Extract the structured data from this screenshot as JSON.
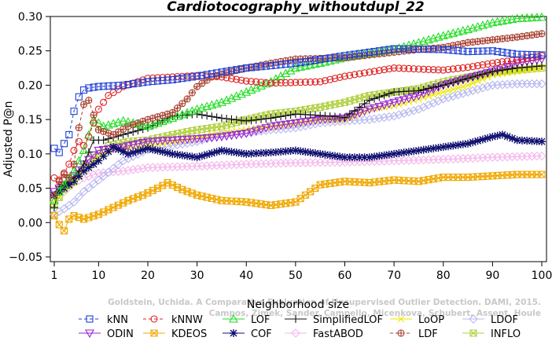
{
  "chart_data": {
    "type": "line",
    "title": "Cardiotocography_withoutdupl_22",
    "xlabel": "Neighborhood size",
    "ylabel": "Adjusted P@n",
    "xlim": [
      1,
      100
    ],
    "ylim": [
      -0.05,
      0.3
    ],
    "x_ticks": [
      1,
      10,
      20,
      30,
      40,
      50,
      60,
      70,
      80,
      90,
      100
    ],
    "y_ticks": [
      -0.05,
      0.0,
      0.05,
      0.1,
      0.15,
      0.2,
      0.25,
      0.3
    ],
    "y_tick_labels": [
      "−0.05",
      "0.00",
      "0.05",
      "0.10",
      "0.15",
      "0.20",
      "0.25",
      "0.30"
    ],
    "grid": false,
    "legend_position": "bottom",
    "watermark_lines": [
      "Goldstein, Uchida. A Comparative Evaluation of Unsupervised Outlier Detection. DAMI, 2015.",
      "Campos, Zimek, Sander, Campello, Micenkova, Schubert, Assent, Houle"
    ],
    "series": [
      {
        "name": "kNN",
        "color": "#1f3fd6",
        "marker": "square",
        "dashed": true,
        "knots": [
          [
            1,
            0.108
          ],
          [
            2,
            0.102
          ],
          [
            3,
            0.115
          ],
          [
            4,
            0.128
          ],
          [
            5,
            0.162
          ],
          [
            6,
            0.183
          ],
          [
            7,
            0.193
          ],
          [
            8,
            0.196
          ],
          [
            10,
            0.198
          ],
          [
            15,
            0.2
          ],
          [
            20,
            0.205
          ],
          [
            25,
            0.208
          ],
          [
            30,
            0.213
          ],
          [
            40,
            0.225
          ],
          [
            50,
            0.232
          ],
          [
            60,
            0.243
          ],
          [
            70,
            0.253
          ],
          [
            80,
            0.252
          ],
          [
            85,
            0.249
          ],
          [
            90,
            0.25
          ],
          [
            95,
            0.245
          ],
          [
            100,
            0.244
          ]
        ]
      },
      {
        "name": "kNNW",
        "color": "#e02020",
        "marker": "circle",
        "dashed": true,
        "knots": [
          [
            1,
            0.065
          ],
          [
            2,
            0.062
          ],
          [
            3,
            0.072
          ],
          [
            4,
            0.085
          ],
          [
            5,
            0.105
          ],
          [
            6,
            0.118
          ],
          [
            7,
            0.112
          ],
          [
            8,
            0.125
          ],
          [
            10,
            0.165
          ],
          [
            12,
            0.185
          ],
          [
            15,
            0.198
          ],
          [
            20,
            0.21
          ],
          [
            25,
            0.212
          ],
          [
            30,
            0.214
          ],
          [
            35,
            0.212
          ],
          [
            40,
            0.206
          ],
          [
            45,
            0.203
          ],
          [
            50,
            0.204
          ],
          [
            55,
            0.205
          ],
          [
            60,
            0.213
          ],
          [
            70,
            0.225
          ],
          [
            80,
            0.222
          ],
          [
            85,
            0.226
          ],
          [
            90,
            0.232
          ],
          [
            95,
            0.237
          ],
          [
            100,
            0.243
          ]
        ]
      },
      {
        "name": "LOF",
        "color": "#22dd22",
        "marker": "triangle",
        "dashed": false,
        "knots": [
          [
            1,
            0.032
          ],
          [
            2,
            0.045
          ],
          [
            3,
            0.055
          ],
          [
            5,
            0.075
          ],
          [
            7,
            0.105
          ],
          [
            9,
            0.15
          ],
          [
            11,
            0.14
          ],
          [
            15,
            0.148
          ],
          [
            20,
            0.14
          ],
          [
            25,
            0.152
          ],
          [
            30,
            0.165
          ],
          [
            35,
            0.175
          ],
          [
            40,
            0.19
          ],
          [
            45,
            0.205
          ],
          [
            50,
            0.225
          ],
          [
            55,
            0.232
          ],
          [
            60,
            0.24
          ],
          [
            70,
            0.252
          ],
          [
            80,
            0.272
          ],
          [
            85,
            0.281
          ],
          [
            90,
            0.291
          ],
          [
            95,
            0.297
          ],
          [
            100,
            0.299
          ]
        ]
      },
      {
        "name": "SimplifiedLOF",
        "color": "#111111",
        "marker": "plus",
        "dashed": false,
        "knots": [
          [
            1,
            0.022
          ],
          [
            2,
            0.052
          ],
          [
            3,
            0.055
          ],
          [
            5,
            0.065
          ],
          [
            7,
            0.085
          ],
          [
            9,
            0.12
          ],
          [
            11,
            0.12
          ],
          [
            15,
            0.128
          ],
          [
            20,
            0.138
          ],
          [
            25,
            0.155
          ],
          [
            30,
            0.158
          ],
          [
            35,
            0.152
          ],
          [
            40,
            0.148
          ],
          [
            45,
            0.152
          ],
          [
            50,
            0.158
          ],
          [
            55,
            0.156
          ],
          [
            60,
            0.153
          ],
          [
            65,
            0.178
          ],
          [
            70,
            0.19
          ],
          [
            75,
            0.192
          ],
          [
            80,
            0.2
          ],
          [
            85,
            0.21
          ],
          [
            90,
            0.22
          ],
          [
            95,
            0.225
          ],
          [
            100,
            0.228
          ]
        ]
      },
      {
        "name": "LoOP",
        "color": "#e8e800",
        "marker": "x",
        "dashed": false,
        "knots": [
          [
            1,
            0.03
          ],
          [
            3,
            0.048
          ],
          [
            5,
            0.058
          ],
          [
            7,
            0.075
          ],
          [
            9,
            0.09
          ],
          [
            12,
            0.105
          ],
          [
            15,
            0.108
          ],
          [
            20,
            0.112
          ],
          [
            25,
            0.118
          ],
          [
            30,
            0.124
          ],
          [
            35,
            0.13
          ],
          [
            40,
            0.135
          ],
          [
            45,
            0.14
          ],
          [
            50,
            0.145
          ],
          [
            55,
            0.15
          ],
          [
            60,
            0.15
          ],
          [
            65,
            0.165
          ],
          [
            70,
            0.17
          ],
          [
            75,
            0.18
          ],
          [
            80,
            0.19
          ],
          [
            85,
            0.2
          ],
          [
            90,
            0.215
          ],
          [
            95,
            0.22
          ],
          [
            100,
            0.225
          ]
        ]
      },
      {
        "name": "LDOF",
        "color": "#b8b8f0",
        "marker": "diamond",
        "dashed": false,
        "knots": [
          [
            1,
            0.012
          ],
          [
            3,
            0.02
          ],
          [
            5,
            0.03
          ],
          [
            7,
            0.045
          ],
          [
            10,
            0.062
          ],
          [
            15,
            0.09
          ],
          [
            20,
            0.106
          ],
          [
            25,
            0.112
          ],
          [
            30,
            0.118
          ],
          [
            35,
            0.128
          ],
          [
            40,
            0.13
          ],
          [
            45,
            0.135
          ],
          [
            50,
            0.138
          ],
          [
            55,
            0.145
          ],
          [
            60,
            0.148
          ],
          [
            65,
            0.15
          ],
          [
            70,
            0.155
          ],
          [
            75,
            0.165
          ],
          [
            80,
            0.18
          ],
          [
            85,
            0.19
          ],
          [
            90,
            0.2
          ],
          [
            95,
            0.202
          ],
          [
            100,
            0.202
          ]
        ]
      },
      {
        "name": "ODIN",
        "color": "#9a22d4",
        "marker": "triangle-down",
        "dashed": false,
        "knots": [
          [
            1,
            0.045
          ],
          [
            3,
            0.055
          ],
          [
            5,
            0.068
          ],
          [
            7,
            0.085
          ],
          [
            10,
            0.105
          ],
          [
            15,
            0.11
          ],
          [
            20,
            0.118
          ],
          [
            25,
            0.12
          ],
          [
            30,
            0.122
          ],
          [
            35,
            0.125
          ],
          [
            40,
            0.13
          ],
          [
            45,
            0.14
          ],
          [
            50,
            0.145
          ],
          [
            55,
            0.15
          ],
          [
            60,
            0.152
          ],
          [
            65,
            0.165
          ],
          [
            70,
            0.175
          ],
          [
            75,
            0.185
          ],
          [
            80,
            0.2
          ],
          [
            85,
            0.21
          ],
          [
            90,
            0.22
          ],
          [
            95,
            0.232
          ],
          [
            100,
            0.238
          ]
        ]
      },
      {
        "name": "KDEOS",
        "color": "#f0a800",
        "marker": "boxx",
        "dashed": false,
        "knots": [
          [
            1,
            0.01
          ],
          [
            2,
            -0.003
          ],
          [
            3,
            -0.012
          ],
          [
            4,
            0.005
          ],
          [
            5,
            0.01
          ],
          [
            7,
            0.005
          ],
          [
            10,
            0.012
          ],
          [
            13,
            0.022
          ],
          [
            16,
            0.032
          ],
          [
            19,
            0.04
          ],
          [
            22,
            0.05
          ],
          [
            24,
            0.058
          ],
          [
            27,
            0.048
          ],
          [
            30,
            0.04
          ],
          [
            35,
            0.032
          ],
          [
            40,
            0.03
          ],
          [
            45,
            0.025
          ],
          [
            50,
            0.03
          ],
          [
            55,
            0.055
          ],
          [
            60,
            0.06
          ],
          [
            65,
            0.058
          ],
          [
            70,
            0.062
          ],
          [
            75,
            0.06
          ],
          [
            80,
            0.066
          ],
          [
            85,
            0.066
          ],
          [
            90,
            0.068
          ],
          [
            95,
            0.07
          ],
          [
            100,
            0.07
          ]
        ]
      },
      {
        "name": "COF",
        "color": "#101070",
        "marker": "star",
        "dashed": false,
        "knots": [
          [
            1,
            0.04
          ],
          [
            3,
            0.05
          ],
          [
            5,
            0.06
          ],
          [
            7,
            0.075
          ],
          [
            10,
            0.09
          ],
          [
            13,
            0.11
          ],
          [
            16,
            0.1
          ],
          [
            20,
            0.108
          ],
          [
            25,
            0.1
          ],
          [
            30,
            0.095
          ],
          [
            35,
            0.105
          ],
          [
            40,
            0.1
          ],
          [
            45,
            0.102
          ],
          [
            50,
            0.105
          ],
          [
            55,
            0.1
          ],
          [
            60,
            0.095
          ],
          [
            65,
            0.095
          ],
          [
            70,
            0.1
          ],
          [
            75,
            0.105
          ],
          [
            80,
            0.11
          ],
          [
            85,
            0.115
          ],
          [
            90,
            0.125
          ],
          [
            92,
            0.128
          ],
          [
            95,
            0.12
          ],
          [
            100,
            0.118
          ]
        ]
      },
      {
        "name": "FastABOD",
        "color": "#f5b6ec",
        "marker": "diamond",
        "dashed": false,
        "knots": [
          [
            1,
            0.03
          ],
          [
            3,
            0.045
          ],
          [
            5,
            0.058
          ],
          [
            7,
            0.065
          ],
          [
            10,
            0.072
          ],
          [
            15,
            0.075
          ],
          [
            20,
            0.08
          ],
          [
            30,
            0.082
          ],
          [
            40,
            0.085
          ],
          [
            50,
            0.087
          ],
          [
            60,
            0.088
          ],
          [
            70,
            0.09
          ],
          [
            80,
            0.092
          ],
          [
            90,
            0.095
          ],
          [
            100,
            0.097
          ]
        ]
      },
      {
        "name": "LDF",
        "color": "#a84030",
        "marker": "circleplus",
        "dashed": true,
        "knots": [
          [
            1,
            0.04
          ],
          [
            2,
            0.06
          ],
          [
            3,
            0.07
          ],
          [
            4,
            0.065
          ],
          [
            5,
            0.085
          ],
          [
            6,
            0.138
          ],
          [
            7,
            0.172
          ],
          [
            8,
            0.178
          ],
          [
            10,
            0.135
          ],
          [
            13,
            0.128
          ],
          [
            16,
            0.14
          ],
          [
            20,
            0.15
          ],
          [
            25,
            0.16
          ],
          [
            28,
            0.18
          ],
          [
            30,
            0.198
          ],
          [
            33,
            0.212
          ],
          [
            36,
            0.218
          ],
          [
            40,
            0.225
          ],
          [
            45,
            0.232
          ],
          [
            50,
            0.238
          ],
          [
            60,
            0.24
          ],
          [
            70,
            0.248
          ],
          [
            75,
            0.252
          ],
          [
            80,
            0.255
          ],
          [
            85,
            0.262
          ],
          [
            90,
            0.266
          ],
          [
            95,
            0.27
          ],
          [
            100,
            0.275
          ]
        ]
      },
      {
        "name": "INFLO",
        "color": "#b0d040",
        "marker": "boxx",
        "dashed": false,
        "knots": [
          [
            1,
            0.025
          ],
          [
            3,
            0.048
          ],
          [
            5,
            0.06
          ],
          [
            7,
            0.078
          ],
          [
            9,
            0.095
          ],
          [
            12,
            0.112
          ],
          [
            16,
            0.118
          ],
          [
            20,
            0.12
          ],
          [
            25,
            0.128
          ],
          [
            30,
            0.135
          ],
          [
            35,
            0.14
          ],
          [
            40,
            0.15
          ],
          [
            45,
            0.158
          ],
          [
            50,
            0.162
          ],
          [
            55,
            0.168
          ],
          [
            60,
            0.175
          ],
          [
            65,
            0.185
          ],
          [
            70,
            0.19
          ],
          [
            75,
            0.195
          ],
          [
            80,
            0.205
          ],
          [
            85,
            0.212
          ],
          [
            90,
            0.218
          ],
          [
            95,
            0.222
          ],
          [
            100,
            0.225
          ]
        ]
      }
    ]
  }
}
